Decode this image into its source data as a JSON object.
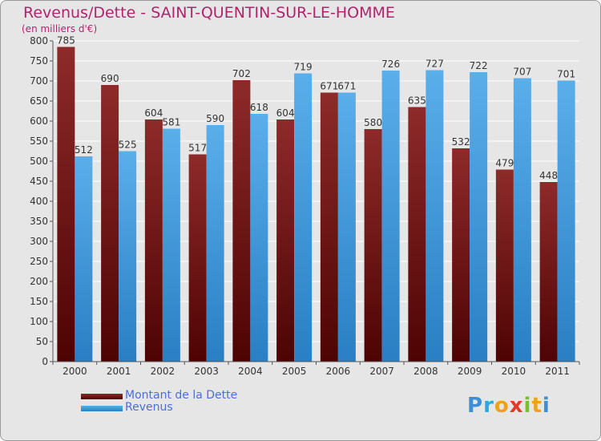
{
  "chart_data": {
    "type": "bar",
    "title": "Revenus/Dette - SAINT-QUENTIN-SUR-LE-HOMME",
    "subtitle": "(en milliers d'€)",
    "categories": [
      "2000",
      "2001",
      "2002",
      "2003",
      "2004",
      "2005",
      "2006",
      "2007",
      "2008",
      "2009",
      "2010",
      "2011"
    ],
    "series": [
      {
        "name": "Montant de la Dette",
        "color": "#8b1c1c",
        "values": [
          785,
          690,
          604,
          517,
          702,
          604,
          671,
          580,
          635,
          532,
          479,
          448
        ]
      },
      {
        "name": "Revenus",
        "color": "#4fa3e6",
        "values": [
          512,
          525,
          581,
          590,
          618,
          719,
          671,
          726,
          727,
          722,
          707,
          701
        ]
      }
    ],
    "ylim": [
      0,
      800
    ],
    "ytick_step": 50,
    "grid": true,
    "legend": "bottom-left"
  },
  "logo_text": "Proxiti",
  "colors": {
    "title": "#b0246e",
    "legend_text": "#4a6fd8",
    "grid": "#ffffff",
    "background": "#e6e6e6"
  }
}
